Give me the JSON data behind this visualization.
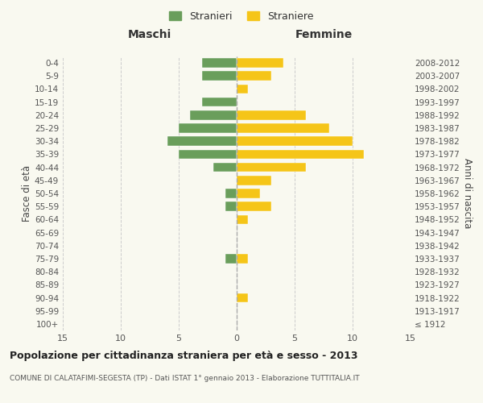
{
  "age_groups": [
    "100+",
    "95-99",
    "90-94",
    "85-89",
    "80-84",
    "75-79",
    "70-74",
    "65-69",
    "60-64",
    "55-59",
    "50-54",
    "45-49",
    "40-44",
    "35-39",
    "30-34",
    "25-29",
    "20-24",
    "15-19",
    "10-14",
    "5-9",
    "0-4"
  ],
  "birth_years": [
    "≤ 1912",
    "1913-1917",
    "1918-1922",
    "1923-1927",
    "1928-1932",
    "1933-1937",
    "1938-1942",
    "1943-1947",
    "1948-1952",
    "1953-1957",
    "1958-1962",
    "1963-1967",
    "1968-1972",
    "1973-1977",
    "1978-1982",
    "1983-1987",
    "1988-1992",
    "1993-1997",
    "1998-2002",
    "2003-2007",
    "2008-2012"
  ],
  "maschi": [
    0,
    0,
    0,
    0,
    0,
    1,
    0,
    0,
    0,
    1,
    1,
    0,
    2,
    5,
    6,
    5,
    4,
    3,
    0,
    3,
    3
  ],
  "femmine": [
    0,
    0,
    1,
    0,
    0,
    1,
    0,
    0,
    1,
    3,
    2,
    3,
    6,
    11,
    10,
    8,
    6,
    0,
    1,
    3,
    4
  ],
  "maschi_color": "#6a9e5b",
  "femmine_color": "#f5c518",
  "background_color": "#f9f9f0",
  "grid_color": "#cccccc",
  "title": "Popolazione per cittadinanza straniera per età e sesso - 2013",
  "subtitle": "COMUNE DI CALATAFIMI-SEGESTA (TP) - Dati ISTAT 1° gennaio 2013 - Elaborazione TUTTITALIA.IT",
  "xlabel_left": "Maschi",
  "xlabel_right": "Femmine",
  "ylabel_left": "Fasce di età",
  "ylabel_right": "Anni di nascita",
  "xlim": 15,
  "legend_maschi": "Stranieri",
  "legend_femmine": "Straniere"
}
